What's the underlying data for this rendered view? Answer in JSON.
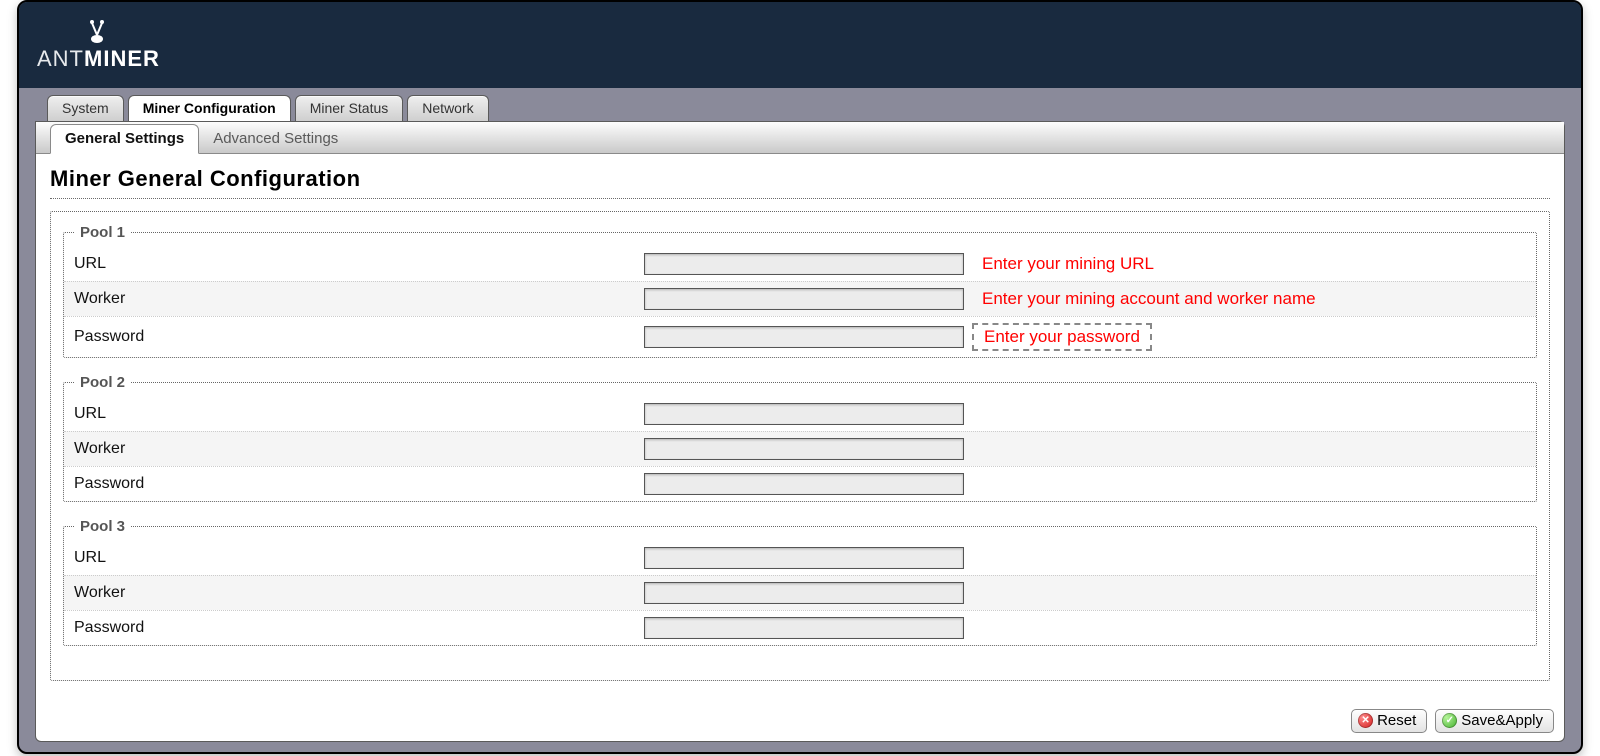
{
  "logo": {
    "text_thin": "ANT",
    "text_bold": "MINER"
  },
  "tabs": {
    "items": [
      {
        "label": "System",
        "active": false
      },
      {
        "label": "Miner Configuration",
        "active": true
      },
      {
        "label": "Miner Status",
        "active": false
      },
      {
        "label": "Network",
        "active": false
      }
    ]
  },
  "subtabs": {
    "items": [
      {
        "label": "General Settings",
        "active": true
      },
      {
        "label": "Advanced Settings",
        "active": false
      }
    ]
  },
  "page_title": "Miner General Configuration",
  "pools": [
    {
      "legend": "Pool 1",
      "fields": {
        "url": {
          "label": "URL",
          "value": "",
          "hint": "Enter your mining URL",
          "hint_boxed": false
        },
        "worker": {
          "label": "Worker",
          "value": "",
          "hint": "Enter your mining account and worker name",
          "hint_boxed": false
        },
        "password": {
          "label": "Password",
          "value": "",
          "hint": "Enter your password",
          "hint_boxed": true
        }
      }
    },
    {
      "legend": "Pool 2",
      "fields": {
        "url": {
          "label": "URL",
          "value": "",
          "hint": "",
          "hint_boxed": false
        },
        "worker": {
          "label": "Worker",
          "value": "",
          "hint": "",
          "hint_boxed": false
        },
        "password": {
          "label": "Password",
          "value": "",
          "hint": "",
          "hint_boxed": false
        }
      }
    },
    {
      "legend": "Pool 3",
      "fields": {
        "url": {
          "label": "URL",
          "value": "",
          "hint": "",
          "hint_boxed": false
        },
        "worker": {
          "label": "Worker",
          "value": "",
          "hint": "",
          "hint_boxed": false
        },
        "password": {
          "label": "Password",
          "value": "",
          "hint": "",
          "hint_boxed": false
        }
      }
    }
  ],
  "buttons": {
    "reset": "Reset",
    "save_apply": "Save&Apply"
  },
  "colors": {
    "header_bg": "#192a3f",
    "frame_bg": "#8a8a9a",
    "hint_text": "#ff0000",
    "reset_icon": "#d11a1a",
    "save_icon": "#3fae2a"
  }
}
